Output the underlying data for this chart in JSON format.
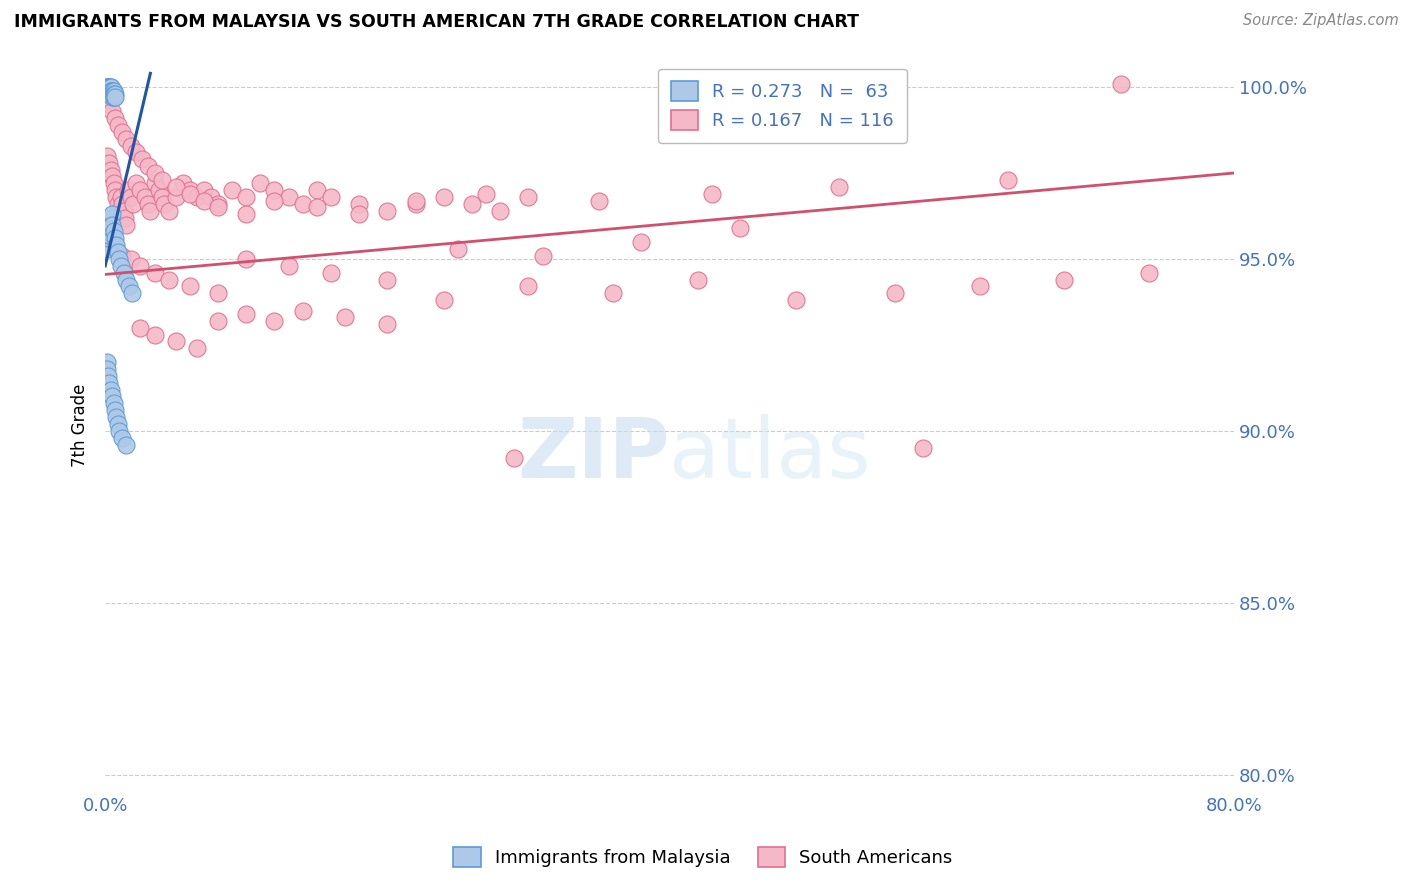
{
  "title": "IMMIGRANTS FROM MALAYSIA VS SOUTH AMERICAN 7TH GRADE CORRELATION CHART",
  "source": "Source: ZipAtlas.com",
  "ylabel": "7th Grade",
  "watermark_zip": "ZIP",
  "watermark_atlas": "atlas",
  "xmin": 0.0,
  "xmax": 0.8,
  "ymin": 0.795,
  "ymax": 1.008,
  "yticks": [
    0.8,
    0.85,
    0.9,
    0.95,
    1.0
  ],
  "ytick_labels": [
    "80.0%",
    "85.0%",
    "90.0%",
    "95.0%",
    "100.0%"
  ],
  "xticks": [
    0.0,
    0.1,
    0.2,
    0.3,
    0.4,
    0.5,
    0.6,
    0.7,
    0.8
  ],
  "xtick_labels": [
    "0.0%",
    "",
    "",
    "",
    "",
    "",
    "",
    "",
    "80.0%"
  ],
  "blue_color": "#aec9e8",
  "pink_color": "#f4b8c8",
  "blue_edge_color": "#5b9bd5",
  "pink_edge_color": "#e07090",
  "blue_line_color": "#2255aa",
  "pink_line_color": "#d05070",
  "tick_label_color": "#4472C4",
  "grid_color": "#cccccc",
  "blue_line_x0": 0.0,
  "blue_line_y0": 0.948,
  "blue_line_x1": 0.032,
  "blue_line_y1": 1.004,
  "pink_line_x0": 0.0,
  "pink_line_y0": 0.9455,
  "pink_line_x1": 0.8,
  "pink_line_y1": 0.975,
  "blue_x": [
    0.001,
    0.001,
    0.001,
    0.001,
    0.002,
    0.002,
    0.002,
    0.002,
    0.003,
    0.003,
    0.003,
    0.003,
    0.003,
    0.003,
    0.004,
    0.004,
    0.004,
    0.004,
    0.004,
    0.005,
    0.005,
    0.005,
    0.005,
    0.005,
    0.006,
    0.006,
    0.006,
    0.006,
    0.007,
    0.007,
    0.001,
    0.001,
    0.002,
    0.002,
    0.003,
    0.003,
    0.004,
    0.004,
    0.005,
    0.005,
    0.006,
    0.007,
    0.008,
    0.009,
    0.01,
    0.011,
    0.013,
    0.015,
    0.017,
    0.019,
    0.001,
    0.001,
    0.002,
    0.003,
    0.004,
    0.005,
    0.006,
    0.007,
    0.008,
    0.009,
    0.01,
    0.012,
    0.015
  ],
  "blue_y": [
    0.999,
    0.999,
    1.0,
    1.0,
    1.0,
    1.0,
    0.999,
    0.999,
    1.0,
    1.0,
    0.999,
    0.999,
    0.998,
    0.998,
    1.0,
    1.0,
    0.999,
    0.999,
    0.998,
    0.999,
    0.999,
    0.998,
    0.998,
    0.997,
    0.999,
    0.998,
    0.997,
    0.997,
    0.998,
    0.997,
    0.955,
    0.953,
    0.958,
    0.956,
    0.96,
    0.957,
    0.962,
    0.959,
    0.963,
    0.96,
    0.958,
    0.956,
    0.954,
    0.952,
    0.95,
    0.948,
    0.946,
    0.944,
    0.942,
    0.94,
    0.92,
    0.918,
    0.916,
    0.914,
    0.912,
    0.91,
    0.908,
    0.906,
    0.904,
    0.902,
    0.9,
    0.898,
    0.896
  ],
  "pink_x": [
    0.001,
    0.002,
    0.003,
    0.004,
    0.005,
    0.006,
    0.007,
    0.008,
    0.009,
    0.01,
    0.011,
    0.012,
    0.013,
    0.014,
    0.015,
    0.016,
    0.018,
    0.02,
    0.022,
    0.025,
    0.028,
    0.03,
    0.032,
    0.035,
    0.038,
    0.04,
    0.042,
    0.045,
    0.05,
    0.055,
    0.06,
    0.065,
    0.07,
    0.075,
    0.08,
    0.09,
    0.1,
    0.11,
    0.12,
    0.13,
    0.14,
    0.15,
    0.16,
    0.18,
    0.2,
    0.22,
    0.24,
    0.26,
    0.28,
    0.3,
    0.003,
    0.005,
    0.007,
    0.009,
    0.012,
    0.015,
    0.018,
    0.022,
    0.026,
    0.03,
    0.035,
    0.04,
    0.05,
    0.06,
    0.07,
    0.08,
    0.1,
    0.12,
    0.15,
    0.18,
    0.22,
    0.27,
    0.35,
    0.43,
    0.52,
    0.64,
    0.72,
    0.004,
    0.008,
    0.012,
    0.018,
    0.025,
    0.035,
    0.045,
    0.06,
    0.08,
    0.1,
    0.13,
    0.16,
    0.2,
    0.25,
    0.31,
    0.38,
    0.45,
    0.29,
    0.58,
    0.025,
    0.035,
    0.05,
    0.065,
    0.08,
    0.1,
    0.12,
    0.14,
    0.17,
    0.2,
    0.24,
    0.3,
    0.36,
    0.42,
    0.49,
    0.56,
    0.62,
    0.68,
    0.74
  ],
  "pink_y": [
    0.98,
    0.975,
    0.978,
    0.976,
    0.974,
    0.972,
    0.97,
    0.968,
    0.966,
    0.964,
    0.968,
    0.966,
    0.964,
    0.962,
    0.96,
    0.97,
    0.968,
    0.966,
    0.972,
    0.97,
    0.968,
    0.966,
    0.964,
    0.972,
    0.97,
    0.968,
    0.966,
    0.964,
    0.968,
    0.972,
    0.97,
    0.968,
    0.97,
    0.968,
    0.966,
    0.97,
    0.968,
    0.972,
    0.97,
    0.968,
    0.966,
    0.97,
    0.968,
    0.966,
    0.964,
    0.966,
    0.968,
    0.966,
    0.964,
    0.968,
    0.995,
    0.993,
    0.991,
    0.989,
    0.987,
    0.985,
    0.983,
    0.981,
    0.979,
    0.977,
    0.975,
    0.973,
    0.971,
    0.969,
    0.967,
    0.965,
    0.963,
    0.967,
    0.965,
    0.963,
    0.967,
    0.969,
    0.967,
    0.969,
    0.971,
    0.973,
    1.001,
    0.955,
    0.953,
    0.951,
    0.95,
    0.948,
    0.946,
    0.944,
    0.942,
    0.94,
    0.95,
    0.948,
    0.946,
    0.944,
    0.953,
    0.951,
    0.955,
    0.959,
    0.892,
    0.895,
    0.93,
    0.928,
    0.926,
    0.924,
    0.932,
    0.934,
    0.932,
    0.935,
    0.933,
    0.931,
    0.938,
    0.942,
    0.94,
    0.944,
    0.938,
    0.94,
    0.942,
    0.944,
    0.946
  ]
}
